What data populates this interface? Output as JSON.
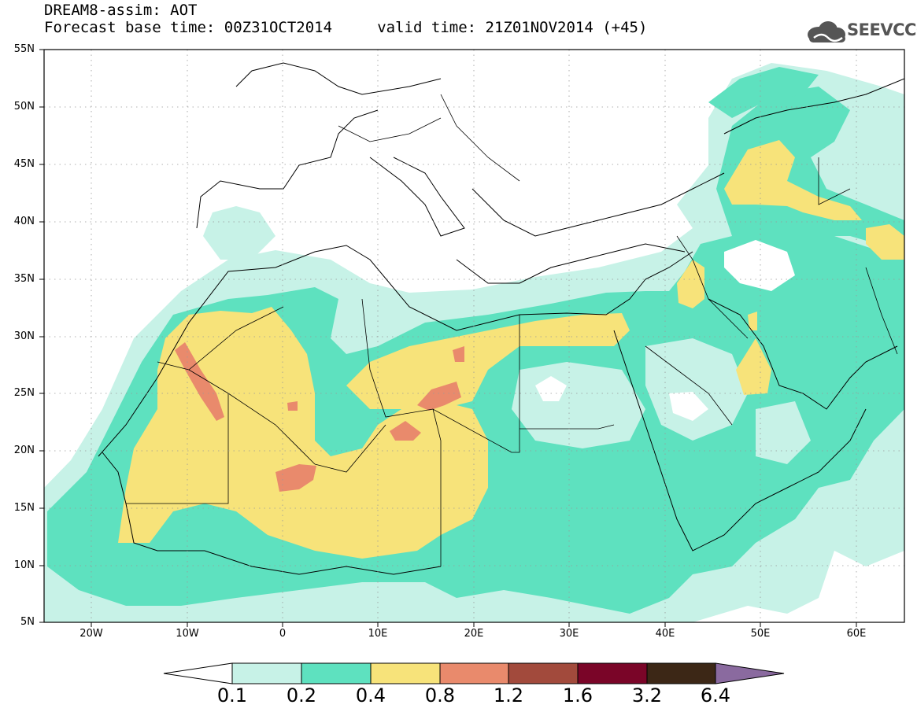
{
  "title": {
    "line1": "DREAM8-assim: AOT",
    "line2": "Forecast base time: 00Z31OCT2014     valid time: 21Z01NOV2014 (+45)"
  },
  "logo": {
    "text": "SEEVCCC",
    "icon": "cloud-icon"
  },
  "axes": {
    "lat_labels": [
      "55N",
      "50N",
      "45N",
      "40N",
      "35N",
      "30N",
      "25N",
      "20N",
      "15N",
      "10N",
      "5N"
    ],
    "lon_labels": [
      "20W",
      "10W",
      "0",
      "10E",
      "20E",
      "30E",
      "40E",
      "50E",
      "60E"
    ],
    "lon_range": [
      -25,
      65
    ],
    "lat_range": [
      5,
      55
    ],
    "grid": "dotted"
  },
  "colorbar": {
    "labels": [
      "0.1",
      "0.2",
      "0.4",
      "0.8",
      "1.2",
      "1.6",
      "3.2",
      "6.4"
    ],
    "colors": [
      "#ffffff",
      "#c7f2e7",
      "#5ee1bf",
      "#f7e37a",
      "#e98a6c",
      "#a24a3c",
      "#7a0528",
      "#3c2716",
      "#8a6a9f"
    ]
  }
}
